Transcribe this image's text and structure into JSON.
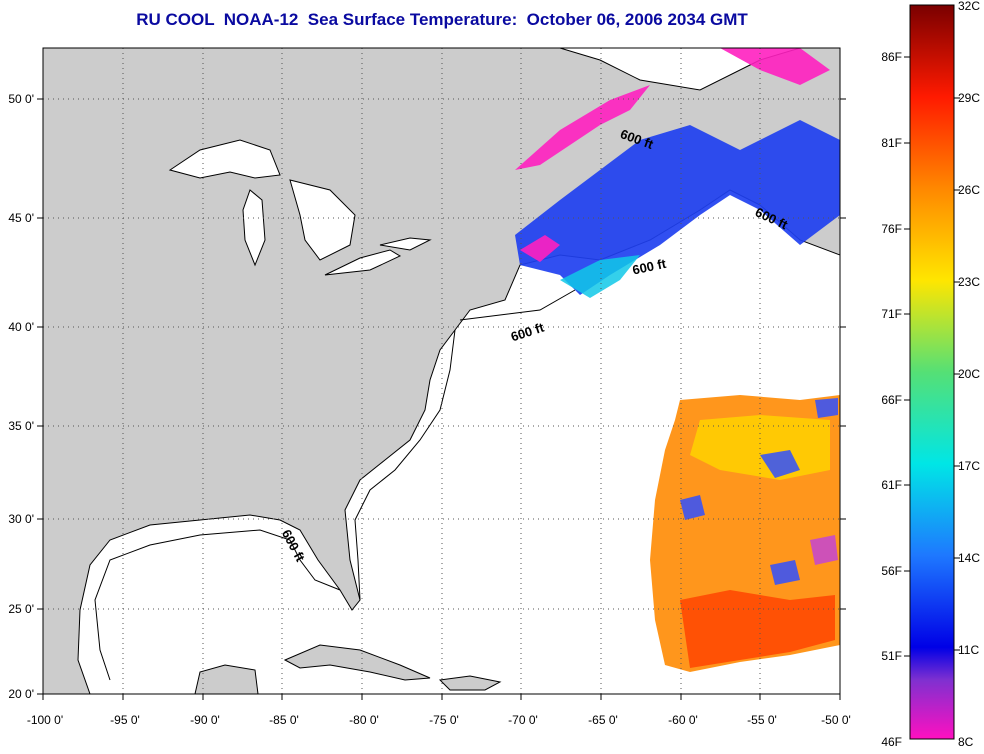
{
  "title": "RU COOL  NOAA-12  Sea Surface Temperature:  October 06, 2006 2034 GMT",
  "map": {
    "projection": "lon-lat",
    "lon_range": [
      -100,
      -50
    ],
    "lat_range": [
      20,
      52.5
    ],
    "land_color": "#cccccc",
    "ocean_color": "#ffffff",
    "grid": "dotted",
    "lon_ticks": [
      "-100 0'",
      "-95 0'",
      "-90 0'",
      "-85 0'",
      "-80 0'",
      "-75 0'",
      "-70 0'",
      "-65 0'",
      "-60 0'",
      "-55 0'",
      "-50 0'"
    ],
    "lat_ticks": [
      "20 0'",
      "25 0'",
      "30 0'",
      "35 0'",
      "40 0'",
      "45 0'",
      "50 0'"
    ],
    "contour_labels": [
      "600 ft",
      "600 ft",
      "600 ft",
      "600 ft",
      "600 ft"
    ]
  },
  "colorbar": {
    "celsius_labels": [
      "32C",
      "29C",
      "26C",
      "23C",
      "20C",
      "17C",
      "14C",
      "11C",
      "8C"
    ],
    "fahrenheit_labels": [
      "86F",
      "81F",
      "76F",
      "71F",
      "66F",
      "61F",
      "56F",
      "51F",
      "46F"
    ],
    "colors": [
      "#8b0000",
      "#ff2000",
      "#ff8c00",
      "#ffe000",
      "#60e060",
      "#00e8e8",
      "#1070ff",
      "#0000e0",
      "#ff10c0"
    ]
  }
}
